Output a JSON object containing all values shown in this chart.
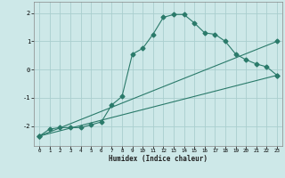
{
  "xlabel": "Humidex (Indice chaleur)",
  "ylabel": "",
  "background_color": "#cde8e8",
  "grid_color": "#aacece",
  "line_color": "#2a7a6a",
  "xlim": [
    -0.5,
    23.5
  ],
  "ylim": [
    -2.7,
    2.4
  ],
  "xticks": [
    0,
    1,
    2,
    3,
    4,
    5,
    6,
    7,
    8,
    9,
    10,
    11,
    12,
    13,
    14,
    15,
    16,
    17,
    18,
    19,
    20,
    21,
    22,
    23
  ],
  "yticks": [
    -2,
    -1,
    0,
    1,
    2
  ],
  "line1_x": [
    0,
    1,
    2,
    3,
    4,
    5,
    6,
    7,
    8,
    9,
    10,
    11,
    12,
    13,
    14,
    15,
    16,
    17,
    18,
    19,
    20,
    21,
    22,
    23
  ],
  "line1_y": [
    -2.35,
    -2.1,
    -2.05,
    -2.05,
    -2.05,
    -1.95,
    -1.85,
    -1.25,
    -0.95,
    0.55,
    0.75,
    1.25,
    1.85,
    1.95,
    1.95,
    1.65,
    1.3,
    1.25,
    1.0,
    0.55,
    0.35,
    0.2,
    0.1,
    -0.2
  ],
  "line2_x": [
    0,
    23
  ],
  "line2_y": [
    -2.35,
    1.0
  ],
  "line3_x": [
    0,
    23
  ],
  "line3_y": [
    -2.35,
    -0.2
  ]
}
